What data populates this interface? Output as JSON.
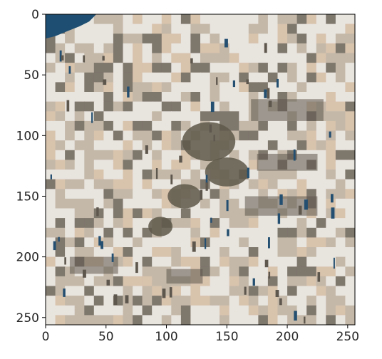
{
  "chart_data": {
    "type": "image",
    "title": "",
    "xlabel": "",
    "ylabel": "",
    "xlim": [
      0,
      256
    ],
    "ylim": [
      256,
      0
    ],
    "x_ticks": [
      0,
      50,
      100,
      150,
      200,
      250
    ],
    "y_ticks": [
      0,
      50,
      100,
      150,
      200,
      250
    ],
    "image_description": "Dense hillside village of whitewashed cave houses, with dark-blue sea visible in the top-left corner and patches of dark green shrubs in the middle",
    "palette": {
      "whitewash": "#e8e4de",
      "stone": "#c4b8a8",
      "shadow": "#7e776c",
      "dark_shadow": "#5e574e",
      "roof_tan": "#d8c3ad",
      "sea_blue": "#1e4f72",
      "door_blue": "#244f70",
      "shrub": "#5e584a",
      "axis": "#000000",
      "text": "#262626"
    }
  }
}
